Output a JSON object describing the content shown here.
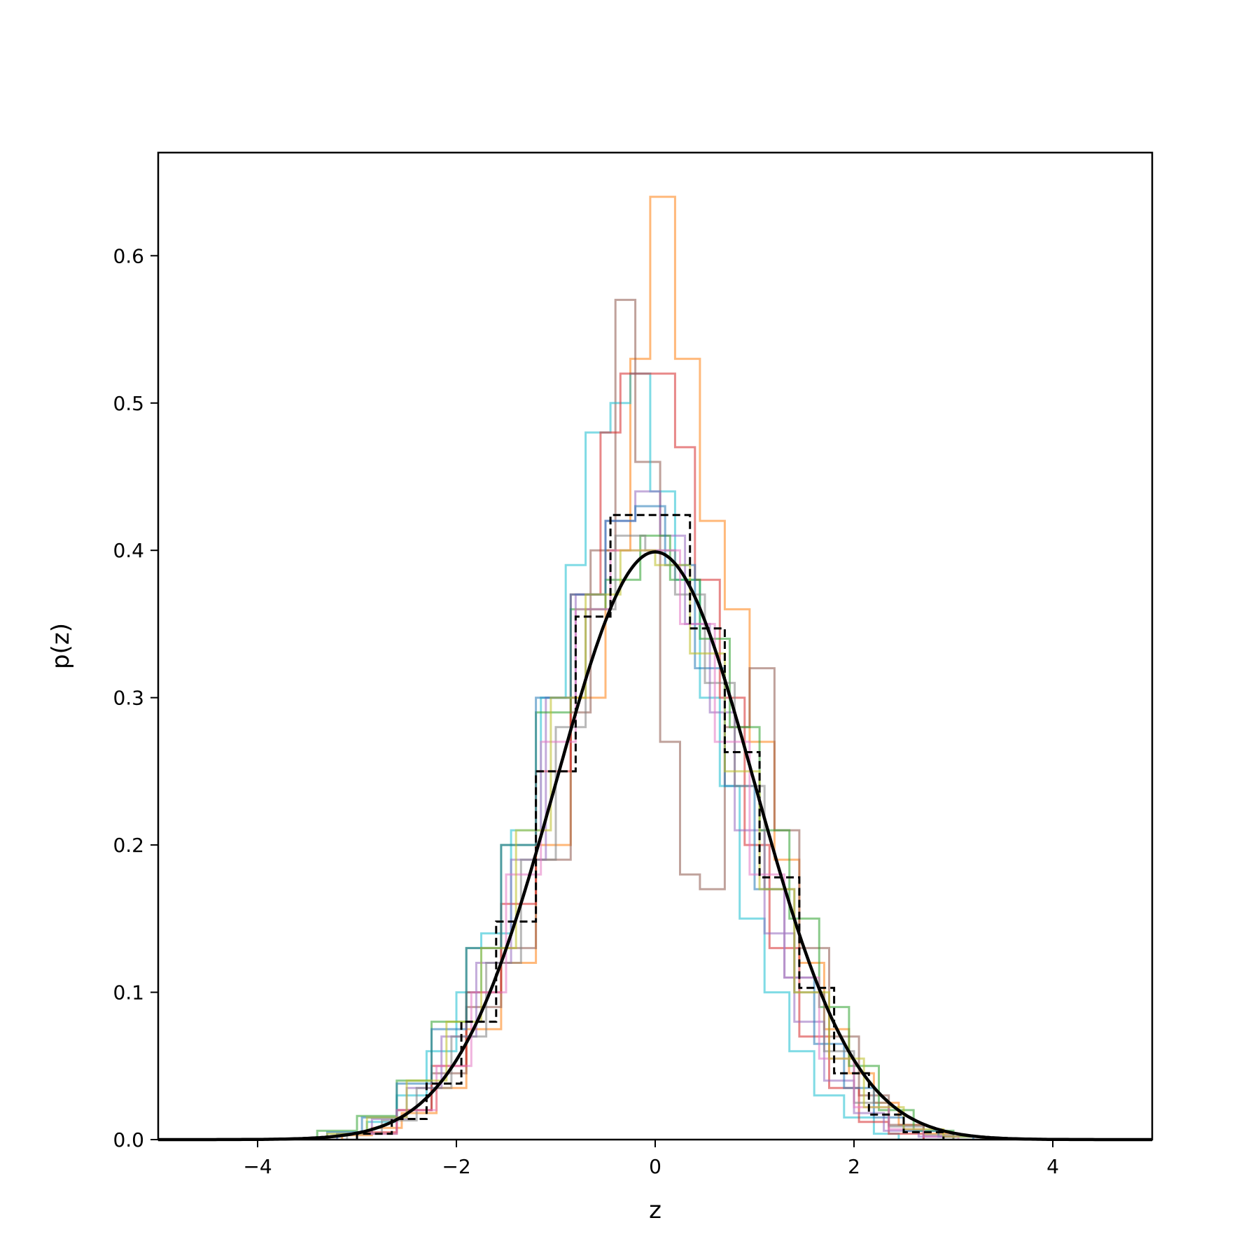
{
  "chart_data": {
    "type": "line",
    "title": "",
    "xlabel": "z",
    "ylabel": "p(z)",
    "xlim": [
      -5,
      5
    ],
    "ylim": [
      0,
      0.67
    ],
    "xticks": [
      -4,
      -2,
      0,
      2,
      4
    ],
    "xtick_labels": [
      "−4",
      "−2",
      "0",
      "2",
      "4"
    ],
    "yticks": [
      0.0,
      0.1,
      0.2,
      0.3,
      0.4,
      0.5,
      0.6
    ],
    "ytick_labels": [
      "0.0",
      "0.1",
      "0.2",
      "0.3",
      "0.4",
      "0.5",
      "0.6"
    ],
    "grid": false,
    "legend": "none",
    "step_histograms": [
      {
        "color": "#ff7f0e",
        "edges": [
          -3.15,
          -2.85,
          -2.55,
          -2.2,
          -1.9,
          -1.55,
          -1.2,
          -0.85,
          -0.5,
          -0.25,
          -0.05,
          0.2,
          0.45,
          0.7,
          0.95,
          1.2,
          1.45,
          1.7,
          1.95,
          2.2,
          2.45,
          2.7,
          3.0
        ],
        "values": [
          0.003,
          0.008,
          0.018,
          0.035,
          0.075,
          0.12,
          0.2,
          0.3,
          0.4,
          0.53,
          0.64,
          0.53,
          0.42,
          0.36,
          0.27,
          0.19,
          0.12,
          0.075,
          0.045,
          0.025,
          0.01,
          0.004
        ]
      },
      {
        "color": "#8c564b",
        "edges": [
          -3.0,
          -2.6,
          -2.25,
          -1.9,
          -1.55,
          -1.2,
          -0.85,
          -0.65,
          -0.4,
          -0.2,
          0.05,
          0.25,
          0.45,
          0.7,
          0.95,
          1.2,
          1.45,
          1.75,
          2.05,
          2.35,
          2.7
        ],
        "values": [
          0.004,
          0.02,
          0.045,
          0.09,
          0.13,
          0.19,
          0.29,
          0.4,
          0.57,
          0.46,
          0.27,
          0.18,
          0.17,
          0.28,
          0.32,
          0.21,
          0.13,
          0.07,
          0.03,
          0.01
        ]
      },
      {
        "color": "#17becf",
        "edges": [
          -3.2,
          -2.9,
          -2.6,
          -2.3,
          -2.0,
          -1.75,
          -1.45,
          -1.15,
          -0.9,
          -0.7,
          -0.45,
          -0.25,
          -0.05,
          0.2,
          0.45,
          0.65,
          0.85,
          1.1,
          1.35,
          1.6,
          1.9,
          2.2,
          2.45
        ],
        "values": [
          0.004,
          0.012,
          0.03,
          0.06,
          0.1,
          0.14,
          0.21,
          0.3,
          0.39,
          0.48,
          0.5,
          0.52,
          0.44,
          0.38,
          0.3,
          0.24,
          0.15,
          0.1,
          0.06,
          0.03,
          0.015,
          0.004
        ]
      },
      {
        "color": "#d62728",
        "edges": [
          -3.0,
          -2.6,
          -2.25,
          -1.9,
          -1.55,
          -1.2,
          -0.85,
          -0.55,
          -0.35,
          -0.1,
          0.2,
          0.4,
          0.65,
          0.9,
          1.15,
          1.45,
          1.75,
          2.05,
          2.35,
          2.7
        ],
        "values": [
          0.005,
          0.02,
          0.05,
          0.1,
          0.16,
          0.25,
          0.37,
          0.48,
          0.52,
          0.52,
          0.47,
          0.38,
          0.3,
          0.2,
          0.13,
          0.07,
          0.035,
          0.012,
          0.004
        ]
      },
      {
        "color": "#9467bd",
        "edges": [
          -3.2,
          -2.85,
          -2.5,
          -2.15,
          -1.8,
          -1.45,
          -1.1,
          -0.8,
          -0.5,
          -0.2,
          0.05,
          0.3,
          0.55,
          0.8,
          1.1,
          1.4,
          1.7,
          2.0,
          2.3,
          2.65,
          3.0
        ],
        "values": [
          0.004,
          0.014,
          0.035,
          0.07,
          0.12,
          0.19,
          0.3,
          0.37,
          0.42,
          0.44,
          0.41,
          0.35,
          0.29,
          0.21,
          0.14,
          0.08,
          0.04,
          0.018,
          0.006,
          0.002
        ]
      },
      {
        "color": "#2ca02c",
        "edges": [
          -3.4,
          -3.0,
          -2.6,
          -2.25,
          -1.9,
          -1.55,
          -1.2,
          -0.85,
          -0.5,
          -0.15,
          0.15,
          0.45,
          0.75,
          1.05,
          1.35,
          1.65,
          1.95,
          2.25,
          2.6,
          3.0
        ],
        "values": [
          0.006,
          0.016,
          0.04,
          0.08,
          0.13,
          0.2,
          0.29,
          0.36,
          0.38,
          0.41,
          0.38,
          0.34,
          0.28,
          0.21,
          0.15,
          0.09,
          0.05,
          0.02,
          0.006
        ]
      },
      {
        "color": "#1f77b4",
        "edges": [
          -3.3,
          -2.95,
          -2.6,
          -2.25,
          -1.9,
          -1.55,
          -1.2,
          -0.85,
          -0.5,
          -0.2,
          0.1,
          0.4,
          0.7,
          1.0,
          1.3,
          1.6,
          1.9,
          2.2,
          2.5,
          2.85,
          3.2
        ],
        "values": [
          0.005,
          0.015,
          0.038,
          0.075,
          0.13,
          0.2,
          0.3,
          0.37,
          0.42,
          0.43,
          0.39,
          0.32,
          0.24,
          0.17,
          0.11,
          0.065,
          0.035,
          0.015,
          0.006,
          0.002
        ]
      },
      {
        "color": "#7f7f7f",
        "edges": [
          -3.1,
          -2.75,
          -2.4,
          -2.05,
          -1.7,
          -1.35,
          -1.0,
          -0.7,
          -0.4,
          -0.1,
          0.2,
          0.5,
          0.8,
          1.1,
          1.4,
          1.7,
          2.0,
          2.35,
          2.7,
          3.0
        ],
        "values": [
          0.004,
          0.013,
          0.035,
          0.07,
          0.12,
          0.19,
          0.28,
          0.36,
          0.41,
          0.4,
          0.37,
          0.31,
          0.24,
          0.17,
          0.1,
          0.06,
          0.025,
          0.009,
          0.003
        ]
      },
      {
        "color": "#e377c2",
        "edges": [
          -3.0,
          -2.6,
          -2.2,
          -1.85,
          -1.5,
          -1.15,
          -0.8,
          -0.45,
          -0.1,
          0.25,
          0.6,
          0.95,
          1.3,
          1.65,
          2.0,
          2.35,
          2.7,
          3.05
        ],
        "values": [
          0.004,
          0.02,
          0.05,
          0.1,
          0.18,
          0.27,
          0.36,
          0.4,
          0.4,
          0.35,
          0.27,
          0.18,
          0.11,
          0.055,
          0.022,
          0.007,
          0.002
        ]
      },
      {
        "color": "#bcbd22",
        "edges": [
          -3.3,
          -2.9,
          -2.5,
          -2.1,
          -1.75,
          -1.4,
          -1.05,
          -0.7,
          -0.35,
          0.0,
          0.35,
          0.7,
          1.05,
          1.4,
          1.75,
          2.1,
          2.5,
          2.9,
          3.3
        ],
        "values": [
          0.004,
          0.015,
          0.04,
          0.08,
          0.13,
          0.21,
          0.3,
          0.37,
          0.4,
          0.39,
          0.33,
          0.25,
          0.17,
          0.1,
          0.055,
          0.022,
          0.007,
          0.002
        ]
      }
    ],
    "reference_histogram": {
      "color": "#000000",
      "edges": [
        -3.0,
        -2.65,
        -2.3,
        -1.95,
        -1.6,
        -1.2,
        -0.8,
        -0.45,
        0.35,
        0.7,
        1.05,
        1.45,
        1.8,
        2.15,
        2.5,
        2.9
      ],
      "values": [
        0.004,
        0.014,
        0.038,
        0.08,
        0.148,
        0.25,
        0.355,
        0.424,
        0.347,
        0.263,
        0.178,
        0.103,
        0.045,
        0.017,
        0.005
      ]
    },
    "normal_pdf": {
      "mu": 0,
      "sigma": 1,
      "color": "#000000",
      "x_range": [
        -5,
        5
      ]
    }
  }
}
